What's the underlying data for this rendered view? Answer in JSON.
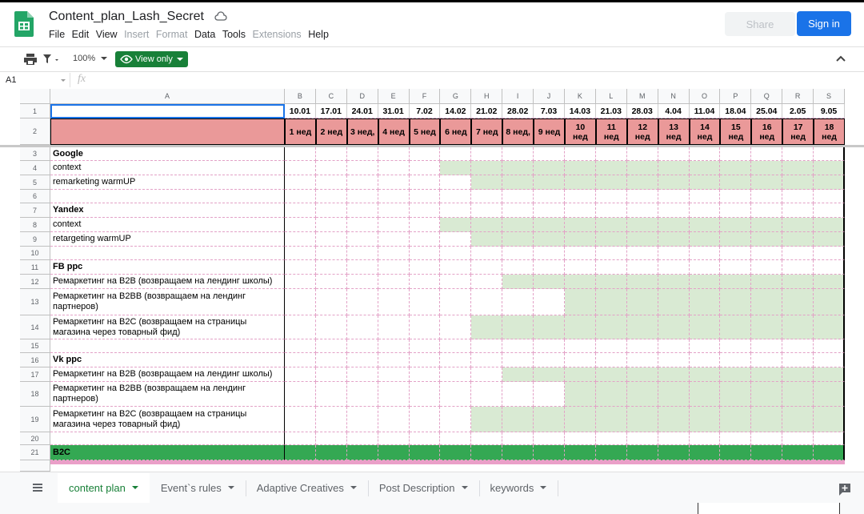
{
  "header": {
    "title": "Content_plan_Lash_Secret",
    "menu": [
      {
        "label": "File",
        "enabled": true
      },
      {
        "label": "Edit",
        "enabled": true
      },
      {
        "label": "View",
        "enabled": true
      },
      {
        "label": "Insert",
        "enabled": false
      },
      {
        "label": "Format",
        "enabled": false
      },
      {
        "label": "Data",
        "enabled": true
      },
      {
        "label": "Tools",
        "enabled": true
      },
      {
        "label": "Extensions",
        "enabled": false
      },
      {
        "label": "Help",
        "enabled": true
      }
    ],
    "share": "Share",
    "sign_in": "Sign in"
  },
  "toolbar": {
    "zoom": "100%",
    "view_only": "View only"
  },
  "formula_bar": {
    "cell": "A1",
    "fx": "fx"
  },
  "sheet": {
    "columns": [
      "A",
      "B",
      "C",
      "D",
      "E",
      "F",
      "G",
      "H",
      "I",
      "J",
      "K",
      "L",
      "M",
      "N",
      "O",
      "P",
      "Q",
      "R",
      "S"
    ],
    "row_numbers": [
      1,
      2,
      3,
      4,
      5,
      6,
      7,
      8,
      9,
      10,
      11,
      12,
      13,
      14,
      15,
      16,
      17,
      18,
      19,
      20,
      21
    ],
    "dates": [
      "10.01",
      "17.01",
      "24.01",
      "31.01",
      "7.02",
      "14.02",
      "21.02",
      "28.02",
      "7.03",
      "14.03",
      "21.03",
      "28.03",
      "4.04",
      "11.04",
      "18.04",
      "25.04",
      "2.05",
      "9.05"
    ],
    "weeks": [
      "1 нед",
      "2 нед",
      "3 нед,",
      "4 нед",
      "5 нед",
      "6 нед",
      "7 нед",
      "8 нед,",
      "9 нед",
      "10 нед",
      "11 нед",
      "12 нед",
      "13 нед",
      "14 нед",
      "15 нед",
      "16 нед",
      "17 нед",
      "18 нед"
    ],
    "rows": [
      {
        "text": "Google",
        "bold": true
      },
      {
        "text": "context"
      },
      {
        "text": "remarketing warmUP"
      },
      null,
      {
        "text": "Yandex",
        "bold": true
      },
      {
        "text": "context"
      },
      {
        "text": "retargeting warmUP"
      },
      null,
      {
        "text": "FB ppc",
        "bold": true
      },
      {
        "text": "Ремаркетинг на B2B (возвращаем на лендинг школы)"
      },
      {
        "text": "Ремаркетинг на B2BB (возвращаем на лендинг партнеров)"
      },
      {
        "text": "Ремаркетинг на B2C (возвращаем на страницы магазина через товарный фид)"
      },
      null,
      {
        "text": "Vk ppc",
        "bold": true
      },
      {
        "text": "Ремаркетинг на B2B (возвращаем на лендинг школы)"
      },
      {
        "text": "Ремаркетинг на B2BB (возвращаем на лендинг партнеров)"
      },
      {
        "text": "Ремаркетинг на B2C (возвращаем на страницы магазина через товарный фид)"
      },
      null,
      {
        "text": "B2C",
        "bold": true
      }
    ]
  },
  "tabs": [
    {
      "label": "content plan",
      "active": true
    },
    {
      "label": "Event`s rules"
    },
    {
      "label": "Adaptive Creatives"
    },
    {
      "label": "Post Description"
    },
    {
      "label": "keywords"
    }
  ]
}
